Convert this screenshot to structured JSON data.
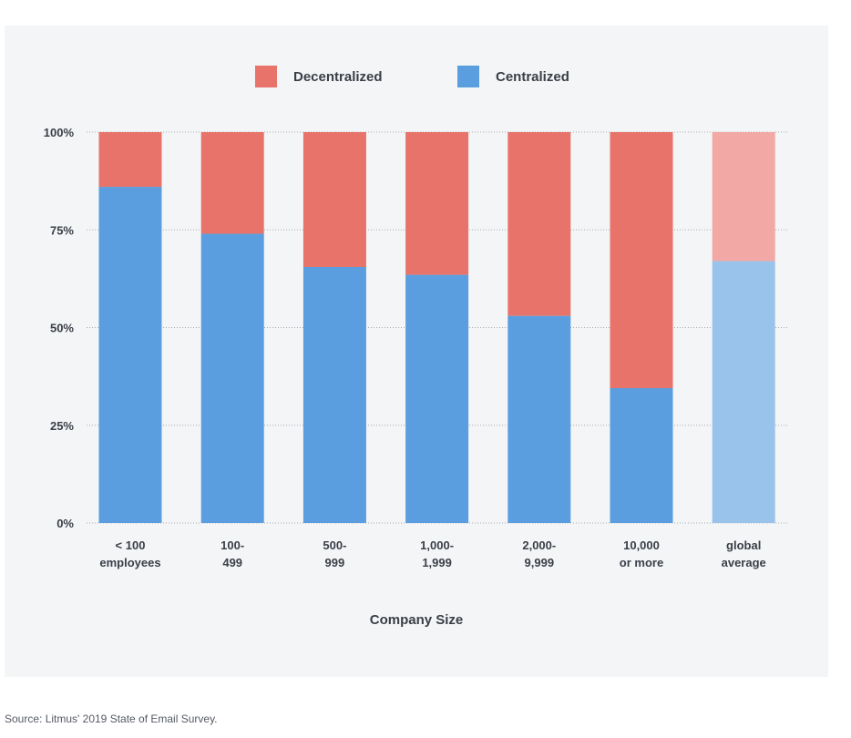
{
  "chart_data": {
    "type": "bar",
    "stacked": true,
    "categories": [
      [
        "< 100",
        "employees"
      ],
      [
        "100-",
        "499"
      ],
      [
        "500-",
        "999"
      ],
      [
        "1,000-",
        "1,999"
      ],
      [
        "2,000-",
        "9,999"
      ],
      [
        "10,000",
        "or more"
      ],
      [
        "global",
        "average"
      ]
    ],
    "series": [
      {
        "name": "Centralized",
        "values": [
          86,
          74,
          65.5,
          63.5,
          53,
          34.5,
          67
        ],
        "color": "#5a9ee0",
        "highlight_color": "#9ac3eb"
      },
      {
        "name": "Decentralized",
        "values": [
          14,
          26,
          34.5,
          36.5,
          47,
          65.5,
          33
        ],
        "color": "#e8736a",
        "highlight_color": "#f2a8a4"
      }
    ],
    "highlight_category_index": 6,
    "legend": {
      "position": "top-center",
      "order": [
        "Decentralized",
        "Centralized"
      ]
    },
    "yticks": [
      "0%",
      "25%",
      "50%",
      "75%",
      "100%"
    ],
    "ylim": [
      0,
      100
    ],
    "xlabel": "Company Size",
    "ylabel": "",
    "grid": "horizontal-dotted"
  },
  "source_note": "Source: Litmus' 2019 State of Email Survey."
}
